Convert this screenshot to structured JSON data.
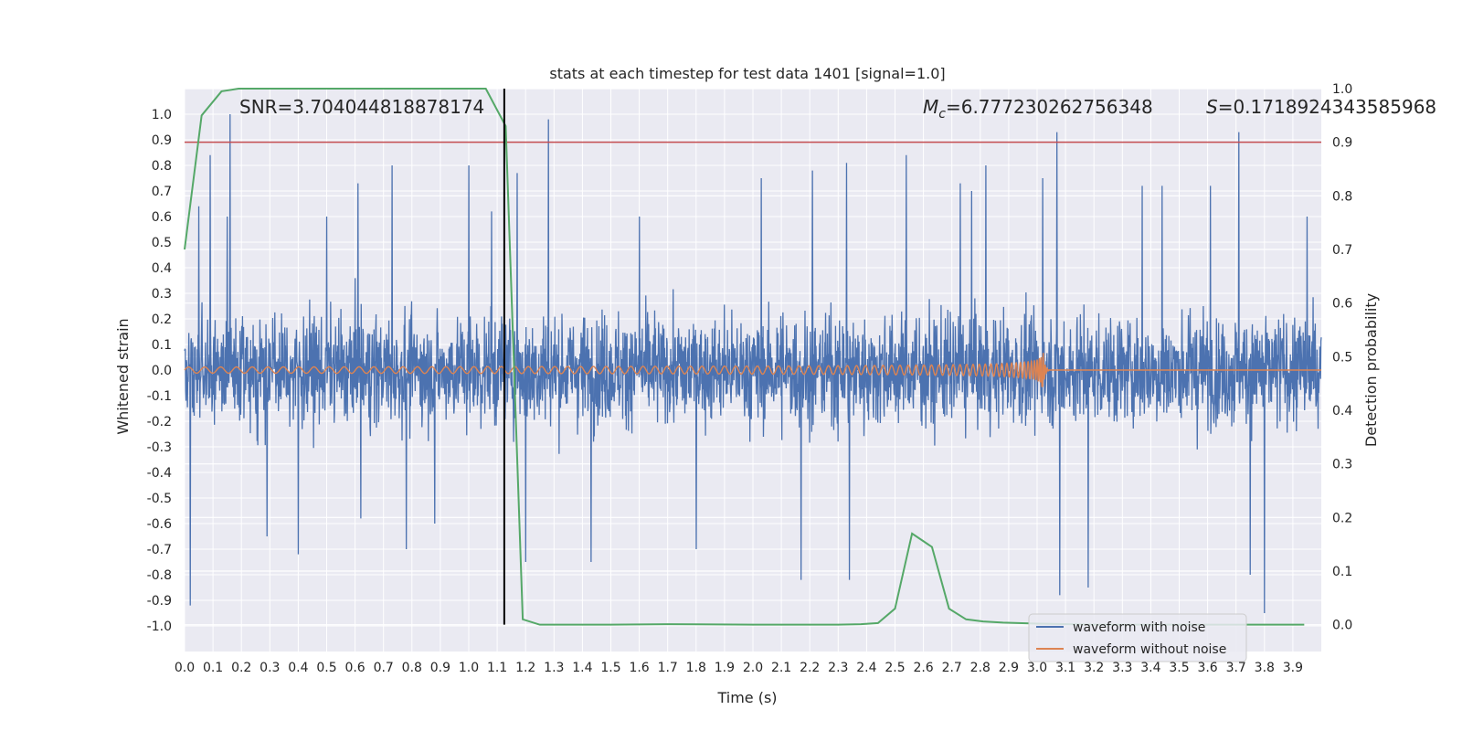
{
  "chart_data": {
    "type": "line",
    "title": "stats at each timestep for test data 1401 [signal=1.0]",
    "xlabel": "Time (s)",
    "ylabel": "Whitened strain",
    "y2label": "Detection probability",
    "xlim": [
      0.0,
      4.0
    ],
    "ylim": [
      -1.1,
      1.1
    ],
    "y2lim": [
      -0.05,
      1.0
    ],
    "xticks": [
      0.0,
      0.1,
      0.2,
      0.3,
      0.4,
      0.5,
      0.6,
      0.7,
      0.8,
      0.9,
      1.0,
      1.1,
      1.2,
      1.3,
      1.4,
      1.5,
      1.6,
      1.7,
      1.8,
      1.9,
      2.0,
      2.1,
      2.2,
      2.3,
      2.4,
      2.5,
      2.6,
      2.7,
      2.8,
      2.9,
      3.0,
      3.1,
      3.2,
      3.3,
      3.4,
      3.5,
      3.6,
      3.7,
      3.8,
      3.9
    ],
    "yticks": [
      1.0,
      0.9,
      0.8,
      0.7,
      0.6,
      0.5,
      0.4,
      0.3,
      0.2,
      0.1,
      0.0,
      -0.1,
      -0.2,
      -0.3,
      -0.4,
      -0.5,
      -0.6,
      -0.7,
      -0.8,
      -0.9,
      -1.0
    ],
    "y2ticks": [
      1.0,
      0.9,
      0.8,
      0.7,
      0.6,
      0.5,
      0.4,
      0.3,
      0.2,
      0.1,
      0.0
    ],
    "grid": true,
    "legend_placement": "lower-right",
    "annotations": {
      "snr": "SNR=3.704044818878174",
      "mc_symbol": "M",
      "mc_sub": "c",
      "mc_value": "=6.777230262756348",
      "s_symbol": "S",
      "s_value": "=0.1718924343585968"
    },
    "threshold": {
      "value": 0.9,
      "axis": "y2",
      "color": "#c44e52"
    },
    "marker_time": {
      "x": 1.125,
      "color": "#000000"
    },
    "series": [
      {
        "name": "waveform with noise",
        "color": "#4c72b0",
        "axis": "y",
        "kind": "noise",
        "amplitude": 0.27,
        "spikes": [
          [
            0.02,
            -0.92
          ],
          [
            0.05,
            0.64
          ],
          [
            0.09,
            0.84
          ],
          [
            0.15,
            0.6
          ],
          [
            0.16,
            1.0
          ],
          [
            0.29,
            -0.65
          ],
          [
            0.4,
            -0.72
          ],
          [
            0.5,
            0.6
          ],
          [
            0.61,
            0.73
          ],
          [
            0.62,
            -0.58
          ],
          [
            0.73,
            0.8
          ],
          [
            0.78,
            -0.7
          ],
          [
            0.88,
            -0.6
          ],
          [
            1.0,
            0.8
          ],
          [
            1.08,
            0.62
          ],
          [
            1.17,
            0.77
          ],
          [
            1.2,
            -0.75
          ],
          [
            1.28,
            0.98
          ],
          [
            1.43,
            -0.75
          ],
          [
            1.6,
            0.6
          ],
          [
            1.8,
            -0.7
          ],
          [
            2.03,
            0.75
          ],
          [
            2.17,
            -0.82
          ],
          [
            2.21,
            0.78
          ],
          [
            2.33,
            0.81
          ],
          [
            2.34,
            -0.82
          ],
          [
            2.54,
            0.84
          ],
          [
            2.73,
            0.73
          ],
          [
            2.77,
            0.7
          ],
          [
            2.82,
            0.8
          ],
          [
            3.02,
            0.75
          ],
          [
            3.07,
            0.93
          ],
          [
            3.08,
            -0.88
          ],
          [
            3.18,
            -0.85
          ],
          [
            3.37,
            0.72
          ],
          [
            3.44,
            0.72
          ],
          [
            3.61,
            0.72
          ],
          [
            3.71,
            0.93
          ],
          [
            3.75,
            -0.8
          ],
          [
            3.8,
            -0.95
          ],
          [
            3.95,
            0.6
          ]
        ]
      },
      {
        "name": "waveform without noise",
        "color": "#dd8452",
        "axis": "y",
        "kind": "chirp",
        "merger_time": 3.02,
        "start_amplitude": 0.012,
        "peak_amplitude": 0.09
      },
      {
        "color": "#55a868",
        "axis": "y2",
        "kind": "probability",
        "x": [
          0.0,
          0.06,
          0.13,
          0.19,
          0.25,
          0.31,
          0.38,
          0.44,
          0.5,
          0.56,
          0.63,
          0.69,
          0.75,
          0.81,
          0.88,
          0.94,
          1.0,
          1.06,
          1.13,
          1.19,
          1.25,
          1.31,
          1.38,
          1.5,
          1.7,
          2.0,
          2.2,
          2.3,
          2.38,
          2.44,
          2.5,
          2.56,
          2.63,
          2.69,
          2.75,
          2.81,
          2.88,
          3.0,
          3.2,
          3.5,
          3.7,
          3.8,
          3.94
        ],
        "values": [
          0.7,
          0.95,
          0.995,
          1.0,
          1.0,
          1.0,
          1.0,
          1.0,
          1.0,
          1.0,
          1.0,
          1.0,
          1.0,
          1.0,
          1.0,
          1.0,
          1.0,
          1.0,
          0.93,
          0.01,
          0.0,
          0.0,
          0.0,
          0.0,
          0.001,
          0.0,
          0.0,
          0.0,
          0.001,
          0.003,
          0.03,
          0.17,
          0.145,
          0.03,
          0.01,
          0.006,
          0.004,
          0.002,
          0.0,
          0.0,
          0.0,
          0.0,
          0.0
        ]
      }
    ]
  }
}
